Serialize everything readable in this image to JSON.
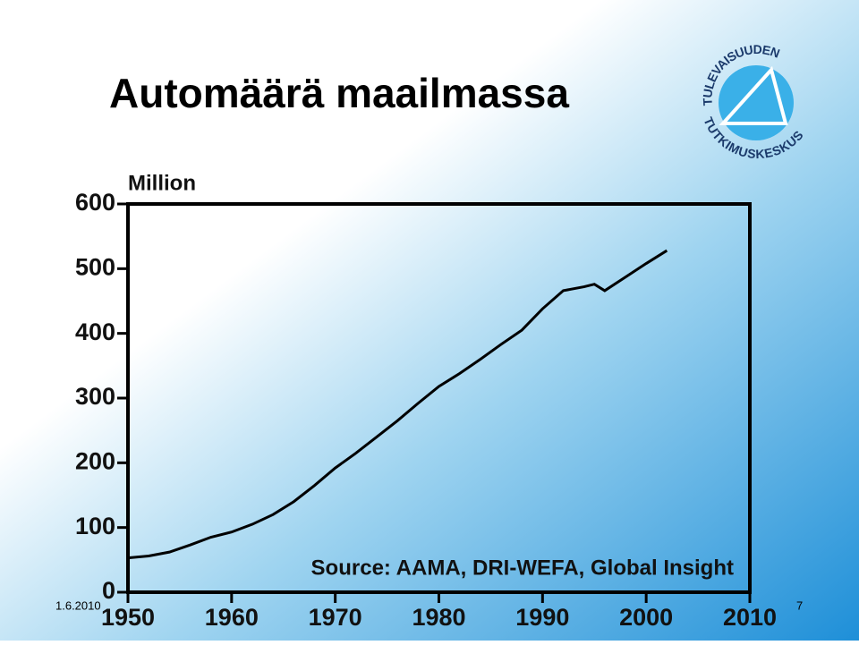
{
  "title": "Automäärä maailmassa",
  "logo": {
    "top_text": "TULEVAISUUDEN",
    "bottom_text": "TUTKIMUSKESKUS"
  },
  "footer": {
    "date": "1.6.2010",
    "page": 7
  },
  "chart_data": {
    "type": "line",
    "y_label": "Million",
    "annotation": "Source: AAMA, DRI-WEFA, Global Insight",
    "x": [
      1950,
      1952,
      1954,
      1956,
      1958,
      1960,
      1962,
      1964,
      1966,
      1968,
      1970,
      1972,
      1974,
      1976,
      1978,
      1980,
      1982,
      1984,
      1986,
      1988,
      1990,
      1992,
      1994,
      1995,
      1996,
      1998,
      2000,
      2002
    ],
    "values": [
      53,
      56,
      62,
      73,
      85,
      93,
      105,
      120,
      140,
      165,
      192,
      215,
      240,
      265,
      292,
      318,
      338,
      360,
      383,
      405,
      438,
      466,
      472,
      476,
      466,
      487,
      508,
      528
    ],
    "color": "#000000",
    "xlim": [
      1950,
      2010
    ],
    "xticks": [
      1950,
      1960,
      1970,
      1980,
      1990,
      2000,
      2010
    ],
    "ylim": [
      0,
      600
    ],
    "yticks": [
      0,
      100,
      200,
      300,
      400,
      500,
      600
    ]
  }
}
